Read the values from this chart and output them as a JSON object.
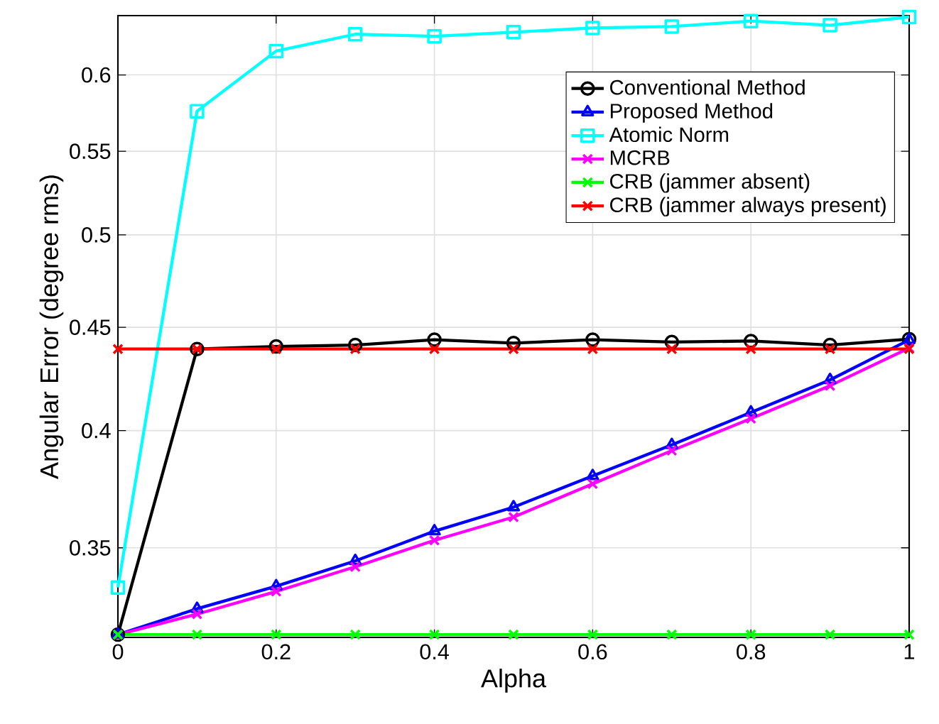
{
  "chart_data": {
    "type": "line",
    "xlabel": "Alpha",
    "ylabel": "Angular Error (degree rms)",
    "x": [
      0,
      0.1,
      0.2,
      0.3,
      0.4,
      0.5,
      0.6,
      0.7,
      0.8,
      0.9,
      1
    ],
    "series": [
      {
        "name": "Conventional Method",
        "color": "#000000",
        "marker": "circle",
        "values": [
          0.317,
          0.439,
          0.4403,
          0.441,
          0.4437,
          0.442,
          0.4437,
          0.4425,
          0.443,
          0.441,
          0.444
        ]
      },
      {
        "name": "Proposed Method",
        "color": "#0000ff",
        "marker": "triangle",
        "values": [
          0.317,
          0.3265,
          0.335,
          0.3448,
          0.3567,
          0.3666,
          0.3799,
          0.3936,
          0.4084,
          0.4238,
          0.4436
        ]
      },
      {
        "name": "Atomic Norm",
        "color": "#00ffff",
        "marker": "square",
        "values": [
          0.3345,
          0.5757,
          0.6166,
          0.6285,
          0.627,
          0.63,
          0.633,
          0.634,
          0.638,
          0.635,
          0.641
        ]
      },
      {
        "name": "MCRB",
        "color": "#ff00ff",
        "marker": "cross",
        "values": [
          0.317,
          0.3245,
          0.333,
          0.3425,
          0.353,
          0.3625,
          0.3765,
          0.391,
          0.4055,
          0.421,
          0.4395
        ]
      },
      {
        "name": "CRB (jammer absent)",
        "color": "#00ff00",
        "marker": "cross",
        "values": [
          0.317,
          0.317,
          0.317,
          0.317,
          0.317,
          0.317,
          0.317,
          0.317,
          0.317,
          0.317,
          0.317
        ]
      },
      {
        "name": "CRB (jammer always present)",
        "color": "#ff0000",
        "marker": "cross",
        "values": [
          0.439,
          0.439,
          0.439,
          0.439,
          0.439,
          0.439,
          0.439,
          0.439,
          0.439,
          0.439,
          0.439
        ]
      }
    ],
    "xlim": [
      0,
      1
    ],
    "ylim": [
      0.316,
      0.642
    ],
    "xticks": [
      0,
      0.2,
      0.4,
      0.6,
      0.8,
      1
    ],
    "yticks": [
      0.35,
      0.4,
      0.45,
      0.5,
      0.55,
      0.6
    ],
    "log": "y",
    "grid": true,
    "legend": "top right"
  }
}
